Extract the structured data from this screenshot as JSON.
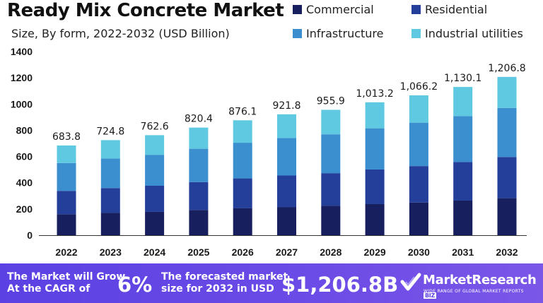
{
  "header": {
    "title": "Ready Mix Concrete Market",
    "subtitle": "Size, By form, 2022-2032 (USD Billion)"
  },
  "chart_data": {
    "type": "bar",
    "stacked": true,
    "categories": [
      "2022",
      "2023",
      "2024",
      "2025",
      "2026",
      "2027",
      "2028",
      "2029",
      "2030",
      "2031",
      "2032"
    ],
    "totals": [
      683.8,
      724.8,
      762.6,
      820.4,
      876.1,
      921.8,
      955.9,
      1013.2,
      1066.2,
      1130.1,
      1206.8
    ],
    "total_labels": [
      "683.8",
      "724.8",
      "762.6",
      "820.4",
      "876.1",
      "921.8",
      "955.9",
      "1,013.2",
      "1,066.2",
      "1,130.1",
      "1,206.8"
    ],
    "series": [
      {
        "name": "Commercial",
        "color": "#171f5e",
        "values": [
          160,
          170,
          178,
          192,
          205,
          215,
          224,
          237,
          249,
          264,
          282
        ]
      },
      {
        "name": "Residential",
        "color": "#243f99",
        "values": [
          178,
          189,
          199,
          213,
          228,
          240,
          249,
          264,
          278,
          294,
          314
        ]
      },
      {
        "name": "Infrastructure",
        "color": "#3b8fcf",
        "values": [
          212,
          225,
          236,
          254,
          272,
          286,
          296,
          314,
          331,
          350,
          374
        ]
      },
      {
        "name": "Industrial utilities",
        "color": "#5ec9e0",
        "values": [
          133.8,
          140.8,
          149.6,
          161.4,
          171.1,
          180.8,
          186.9,
          198.2,
          208.2,
          222.1,
          236.8
        ]
      }
    ],
    "ylim": [
      0,
      1400
    ],
    "yticks": [
      0,
      200,
      400,
      600,
      800,
      1000,
      1200,
      1400
    ],
    "grid": false,
    "legend": "top-right"
  },
  "footer": {
    "grow_line1": "The Market will Grow",
    "grow_line2": "At the CAGR of",
    "cagr": "6%",
    "forecast_line1": "The forecasted market",
    "forecast_line2": "size for 2032 in USD",
    "forecast_value": "$1,206.8B",
    "brand": "MarketResearch",
    "brand_badge": "BIZ",
    "tagline": "WIDE RANGE OF GLOBAL MARKET REPORTS",
    "logo_icon": "checkmark-logo-icon"
  }
}
